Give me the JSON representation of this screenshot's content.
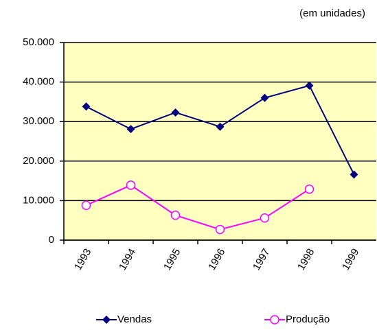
{
  "chart_data": {
    "type": "line",
    "annotation": "(em unidades)",
    "categories": [
      "1993",
      "1994",
      "1995",
      "1996",
      "1997",
      "1998",
      "1999"
    ],
    "series": [
      {
        "name": "Vendas",
        "color": "#000080",
        "marker": "diamond",
        "values": [
          33800,
          28100,
          32300,
          28700,
          36000,
          39100,
          16600
        ]
      },
      {
        "name": "Produção",
        "color": "#ff00ff",
        "marker": "circle",
        "values": [
          8800,
          13900,
          6300,
          2700,
          5600,
          12900,
          null
        ]
      }
    ],
    "ylim": [
      0,
      50000
    ],
    "yticks": [
      0,
      {
        "value": 10000,
        "label": "10.000"
      },
      {
        "value": 20000,
        "label": "20.000"
      },
      {
        "value": 30000,
        "label": "30.000"
      },
      {
        "value": 40000,
        "label": "40.000"
      },
      {
        "value": 50000,
        "label": "50.000"
      }
    ],
    "grid": true,
    "plot_background": "#ffffc0",
    "legend": "bottom"
  }
}
